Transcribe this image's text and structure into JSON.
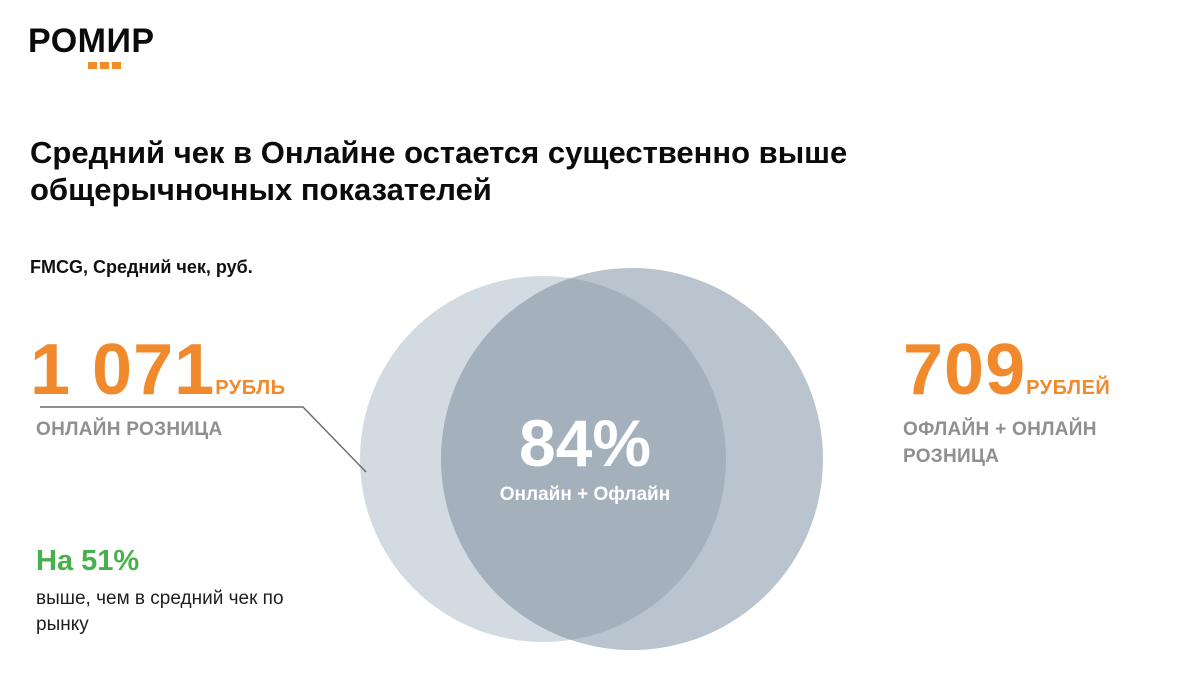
{
  "logo": {
    "text": "РОМИР"
  },
  "title": "Средний чек в Онлайне остается существенно выше общерычночных показателей",
  "subtitle": "FMCG, Средний чек, руб.",
  "left": {
    "value": "1 071",
    "unit": "РУБЛЬ",
    "caption": "ОНЛАЙН РОЗНИЦА"
  },
  "right": {
    "value": "709",
    "unit": "РУБЛЕЙ",
    "caption": "ОФЛАЙН + ОНЛАЙН РОЗНИЦА"
  },
  "center": {
    "percent": "84%",
    "label": "Онлайн + Офлайн"
  },
  "note": {
    "headline": "На 51%",
    "text": "выше, чем в средний чек по рынку"
  },
  "colors": {
    "accent": "#f08a2c",
    "green": "#46b149",
    "circle_left": "#d3dbe2",
    "circle_right": "#b9c4ce",
    "overlap": "#a4b0bc",
    "caption_gray": "#8f8f8f"
  }
}
